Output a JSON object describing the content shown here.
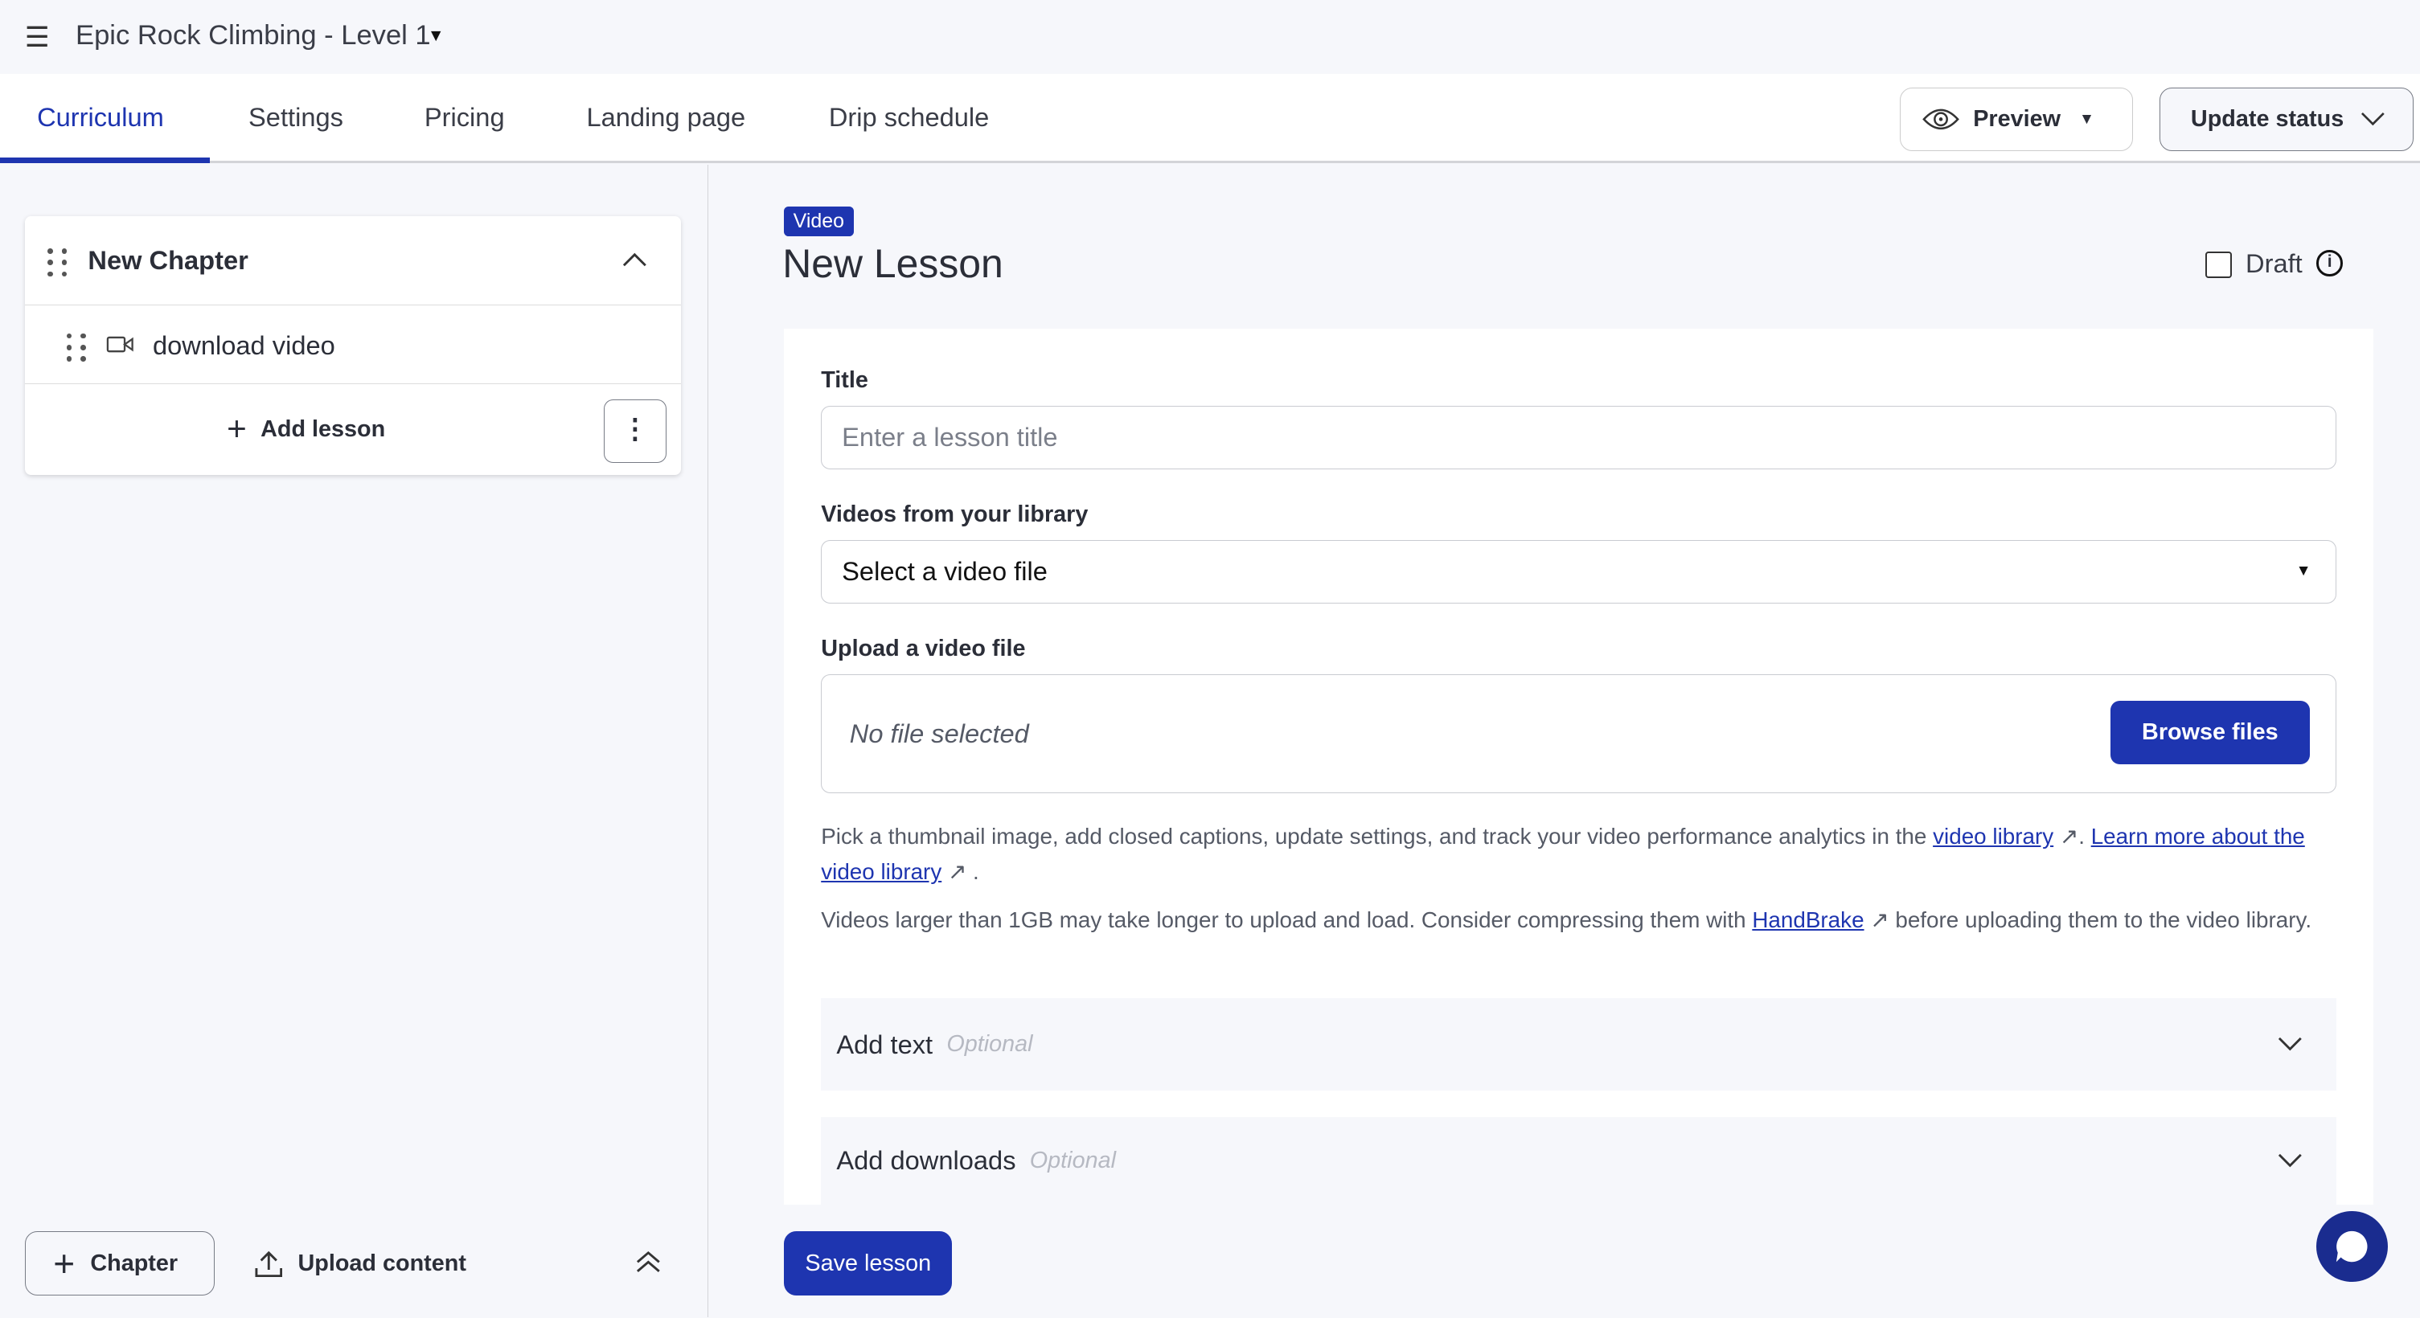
{
  "header": {
    "course_title": "Epic Rock Climbing - Level 1"
  },
  "tabs": [
    {
      "label": "Curriculum",
      "active": true
    },
    {
      "label": "Settings"
    },
    {
      "label": "Pricing"
    },
    {
      "label": "Landing page"
    },
    {
      "label": "Drip schedule"
    }
  ],
  "toolbar": {
    "preview_label": "Preview",
    "update_status_label": "Update status"
  },
  "sidebar": {
    "chapter_title": "New Chapter",
    "lessons": [
      {
        "title": "download video",
        "icon": "video-camera-icon"
      }
    ],
    "add_lesson_label": "Add lesson",
    "add_chapter_label": "Chapter",
    "upload_content_label": "Upload content"
  },
  "lesson": {
    "type_badge": "Video",
    "title": "New Lesson",
    "draft_label": "Draft",
    "draft_checked": false,
    "title_label": "Title",
    "title_placeholder": "Enter a lesson title",
    "library_label": "Videos from your library",
    "library_selected": "Select a video file",
    "upload_label": "Upload a video file",
    "no_file": "No file selected",
    "browse_label": "Browse files",
    "help1_pre": "Pick a thumbnail image, add closed captions, update settings, and track your video performance analytics in the ",
    "help1_link1": "video library",
    "help1_mid": ". ",
    "help1_link2": "Learn more about the video library",
    "help1_end": ".",
    "help2_pre": "Videos larger than 1GB may take longer to upload and load. Consider compressing them with ",
    "help2_link": "HandBrake",
    "help2_post": " before uploading them to the video library.",
    "add_text_label": "Add text",
    "add_downloads_label": "Add downloads",
    "optional_label": "Optional",
    "save_label": "Save lesson"
  },
  "colors": {
    "accent": "#1e35b0",
    "background": "#f6f7fb",
    "text": "#2b2e38"
  }
}
